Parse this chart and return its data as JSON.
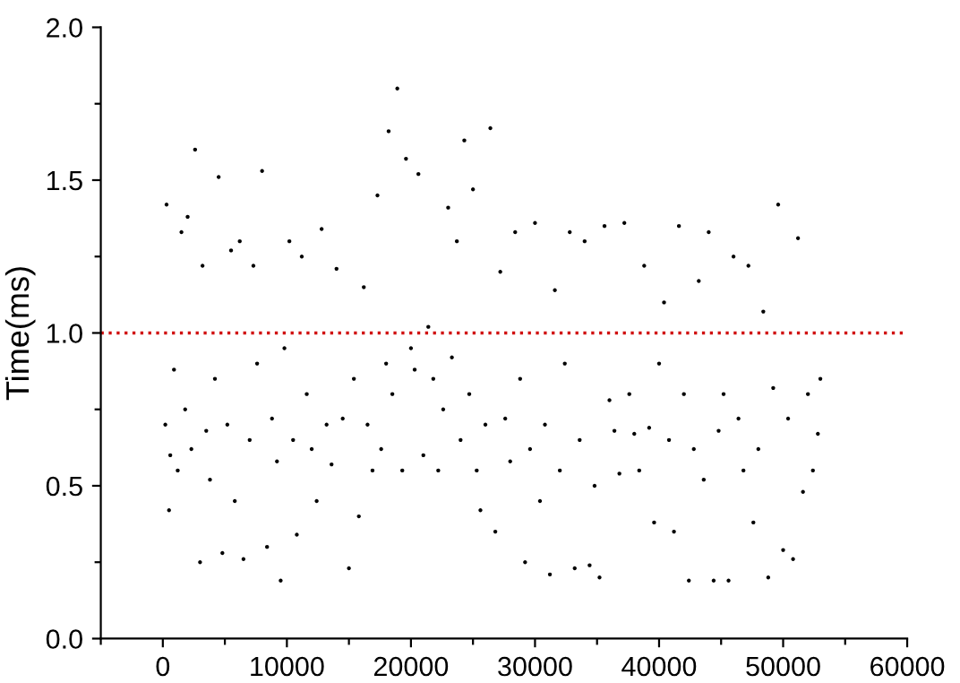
{
  "chart_data": {
    "type": "scatter",
    "ylabel": "Time(ms)",
    "xlim": [
      -5000,
      60000
    ],
    "ylim": [
      0,
      2.0
    ],
    "xticks": [
      {
        "value": -5000,
        "label": null
      },
      0,
      {
        "value": 5000,
        "label": null
      },
      10000,
      {
        "value": 15000,
        "label": null
      },
      20000,
      {
        "value": 25000,
        "label": null
      },
      30000,
      {
        "value": 35000,
        "label": null
      },
      40000,
      {
        "value": 45000,
        "label": null
      },
      50000,
      {
        "value": 55000,
        "label": null
      },
      60000
    ],
    "yticks": [
      {
        "value": 0,
        "label": "0.0"
      },
      {
        "value": 0.25,
        "label": null
      },
      0.5,
      {
        "value": 0.75,
        "label": null
      },
      {
        "value": 1.0,
        "label": "1.0"
      },
      {
        "value": 1.25,
        "label": null
      },
      1.5,
      {
        "value": 1.75,
        "label": null
      },
      {
        "value": 2.0,
        "label": "2.0"
      }
    ],
    "grid": false,
    "marker": "circle",
    "ref_lines": [
      {
        "axis": "y",
        "value": 1.0,
        "color": "#d01010",
        "line_style": "dotted"
      }
    ],
    "series": [
      {
        "color": "#000000",
        "x": [
          200,
          300,
          500,
          600,
          900,
          1200,
          1500,
          1800,
          2000,
          2300,
          2600,
          3000,
          3200,
          3500,
          3800,
          4200,
          4500,
          4800,
          5200,
          5500,
          5800,
          6200,
          6500,
          7000,
          7300,
          7600,
          8000,
          8400,
          8800,
          9200,
          9500,
          9800,
          10200,
          10500,
          10800,
          11200,
          11600,
          12000,
          12400,
          12800,
          13200,
          13600,
          14000,
          14500,
          15000,
          15400,
          15800,
          16200,
          16500,
          16900,
          17300,
          17600,
          18000,
          18200,
          18500,
          18900,
          19300,
          19600,
          20000,
          20300,
          20600,
          21000,
          21400,
          21800,
          22200,
          22600,
          23000,
          23300,
          23700,
          24000,
          24300,
          24700,
          25000,
          25300,
          25600,
          26000,
          26400,
          26800,
          27200,
          27600,
          28000,
          28400,
          28800,
          29200,
          29600,
          30000,
          30400,
          30800,
          31200,
          31600,
          32000,
          32400,
          32800,
          33200,
          33600,
          34000,
          34400,
          34800,
          35200,
          35600,
          36000,
          36400,
          36800,
          37200,
          37600,
          38000,
          38400,
          38800,
          39200,
          39600,
          40000,
          40400,
          40800,
          41200,
          41600,
          42000,
          42400,
          42800,
          43200,
          43600,
          44000,
          44400,
          44800,
          45200,
          45600,
          46000,
          46400,
          46800,
          47200,
          47600,
          48000,
          48400,
          48800,
          49200,
          49600,
          50000,
          50400,
          50800,
          51200,
          51600,
          52000,
          52400,
          52800,
          53000
        ],
        "values": [
          0.7,
          1.42,
          0.42,
          0.6,
          0.88,
          0.55,
          1.33,
          0.75,
          1.38,
          0.62,
          1.6,
          0.25,
          1.22,
          0.68,
          0.52,
          0.85,
          1.51,
          0.28,
          0.7,
          1.27,
          0.45,
          1.3,
          0.26,
          0.65,
          1.22,
          0.9,
          1.53,
          0.3,
          0.72,
          0.58,
          0.19,
          0.95,
          1.3,
          0.65,
          0.34,
          1.25,
          0.8,
          0.62,
          0.45,
          1.34,
          0.7,
          0.57,
          1.21,
          0.72,
          0.23,
          0.85,
          0.4,
          1.15,
          0.7,
          0.55,
          1.45,
          0.62,
          0.9,
          1.66,
          0.8,
          1.8,
          0.55,
          1.57,
          0.95,
          0.88,
          1.52,
          0.6,
          1.02,
          0.85,
          0.55,
          0.75,
          1.41,
          0.92,
          1.3,
          0.65,
          1.63,
          0.8,
          1.47,
          0.55,
          0.42,
          0.7,
          1.67,
          0.35,
          1.2,
          0.72,
          0.58,
          1.33,
          0.85,
          0.25,
          0.62,
          1.36,
          0.45,
          0.7,
          0.21,
          1.14,
          0.55,
          0.9,
          1.33,
          0.23,
          0.65,
          1.3,
          0.24,
          0.5,
          0.2,
          1.35,
          0.78,
          0.68,
          0.54,
          1.36,
          0.8,
          0.67,
          0.55,
          1.22,
          0.69,
          0.38,
          0.9,
          1.1,
          0.65,
          0.35,
          1.35,
          0.8,
          0.19,
          0.62,
          1.17,
          0.52,
          1.33,
          0.19,
          0.68,
          0.8,
          0.19,
          1.25,
          0.72,
          0.55,
          1.22,
          0.38,
          0.62,
          1.07,
          0.2,
          0.82,
          1.42,
          0.29,
          0.72,
          0.26,
          1.31,
          0.48,
          0.8,
          0.55,
          0.67,
          0.85
        ]
      }
    ]
  }
}
